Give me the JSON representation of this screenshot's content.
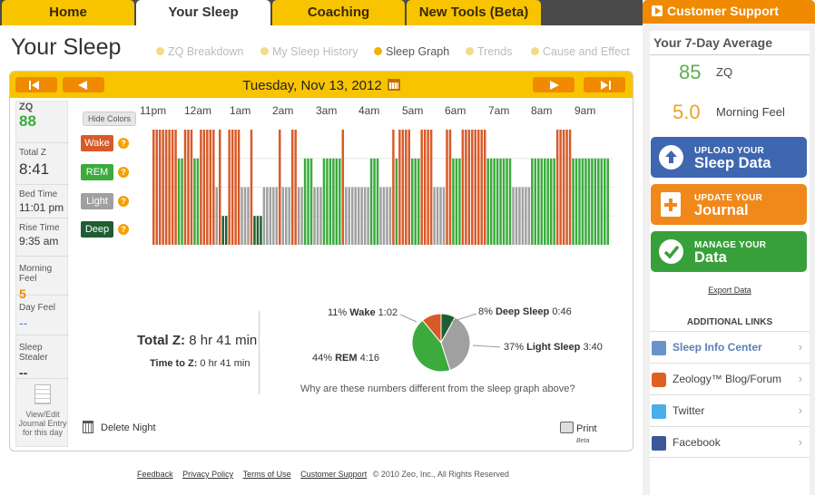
{
  "nav": {
    "tabs": [
      {
        "label": "Home"
      },
      {
        "label": "Your Sleep"
      },
      {
        "label": "Coaching"
      },
      {
        "label": "New Tools (Beta)"
      }
    ],
    "support_label": "Customer Support"
  },
  "page": {
    "title": "Your Sleep",
    "subnav": [
      {
        "label": "ZQ Breakdown"
      },
      {
        "label": "My Sleep History"
      },
      {
        "label": "Sleep Graph"
      },
      {
        "label": "Trends"
      },
      {
        "label": "Cause and Effect"
      }
    ]
  },
  "date_bar": {
    "date": "Tuesday, Nov 13, 2012",
    "calendar_icon": "calendar-icon"
  },
  "stats": {
    "zq_label": "ZQ",
    "zq_value": "88",
    "total_z_label": "Total Z",
    "total_z_value": "8:41",
    "bed_time_label": "Bed Time",
    "bed_time_value": "11:01 pm",
    "rise_time_label": "Rise Time",
    "rise_time_value": "9:35 am",
    "morning_feel_label": "Morning Feel",
    "morning_feel_value": "5",
    "day_feel_label": "Day Feel",
    "day_feel_value": "--",
    "sleep_stealer_label": "Sleep Stealer",
    "sleep_stealer_value": "--",
    "journal_line1": "View/Edit",
    "journal_line2": "Journal Entry",
    "journal_line3": "for this day"
  },
  "graph": {
    "hide_colors_label": "Hide Colors",
    "time_labels": [
      "11pm",
      "12am",
      "1am",
      "2am",
      "3am",
      "4am",
      "5am",
      "6am",
      "7am",
      "8am",
      "9am"
    ],
    "stages": [
      {
        "label": "Wake",
        "color": "#d85a28"
      },
      {
        "label": "REM",
        "color": "#3aab3c"
      },
      {
        "label": "Light",
        "color": "#a0a0a0"
      },
      {
        "label": "Deep",
        "color": "#1e5e32"
      }
    ],
    "question_glyph": "?"
  },
  "summary": {
    "total_z_label": "Total Z:",
    "total_z_value": "8 hr 41 min",
    "time_to_z_label": "Time to Z:",
    "time_to_z_value": "0 hr 41 min",
    "question": "Why are these numbers different from the sleep graph above?"
  },
  "chart_data": {
    "type": "pie",
    "title": "",
    "slices": [
      {
        "name": "Deep Sleep",
        "percent": 8,
        "duration": "0:46",
        "color": "#1e5e32"
      },
      {
        "name": "Light Sleep",
        "percent": 37,
        "duration": "3:40",
        "color": "#a0a0a0"
      },
      {
        "name": "REM",
        "percent": 44,
        "duration": "4:16",
        "color": "#3aab3c"
      },
      {
        "name": "Wake",
        "percent": 11,
        "duration": "1:02",
        "color": "#d85a28"
      }
    ],
    "labels": {
      "wake": {
        "percent": "11%",
        "name": "Wake",
        "duration": "1:02"
      },
      "deep": {
        "percent": "8%",
        "name": "Deep Sleep",
        "duration": "0:46"
      },
      "light": {
        "percent": "37%",
        "name": "Light Sleep",
        "duration": "3:40"
      },
      "rem": {
        "percent": "44%",
        "name": "REM",
        "duration": "4:16"
      }
    }
  },
  "actions": {
    "delete_night": "Delete Night",
    "print": "Print",
    "print_beta": "Beta"
  },
  "footer": {
    "links": [
      "Feedback",
      "Privacy Policy",
      "Terms of Use",
      "Customer Support"
    ],
    "copyright": "© 2010 Zeo, Inc., All Rights Reserved"
  },
  "sidebar": {
    "avg_title": "Your 7-Day Average",
    "zq_value": "85",
    "zq_label": "ZQ",
    "feel_value": "5.0",
    "feel_label": "Morning Feel",
    "buttons": [
      {
        "small": "UPLOAD YOUR",
        "big": "Sleep Data",
        "color": "#3f67b0"
      },
      {
        "small": "UPDATE YOUR",
        "big": "Journal",
        "color": "#f0891a"
      },
      {
        "small": "MANAGE YOUR",
        "big": "Data",
        "color": "#38a03a"
      }
    ],
    "export_label": "Export Data",
    "additional_title": "ADDITIONAL LINKS",
    "links": [
      {
        "label": "Sleep Info Center",
        "icon": "bar-chart-icon",
        "color": "#6a93c8"
      },
      {
        "label": "Zeology™ Blog/Forum",
        "icon": "speech-bubble-icon",
        "color": "#e06020"
      },
      {
        "label": "Twitter",
        "icon": "twitter-icon",
        "color": "#4aaee8"
      },
      {
        "label": "Facebook",
        "icon": "facebook-icon",
        "color": "#3b5998"
      }
    ],
    "chevron": "›"
  }
}
